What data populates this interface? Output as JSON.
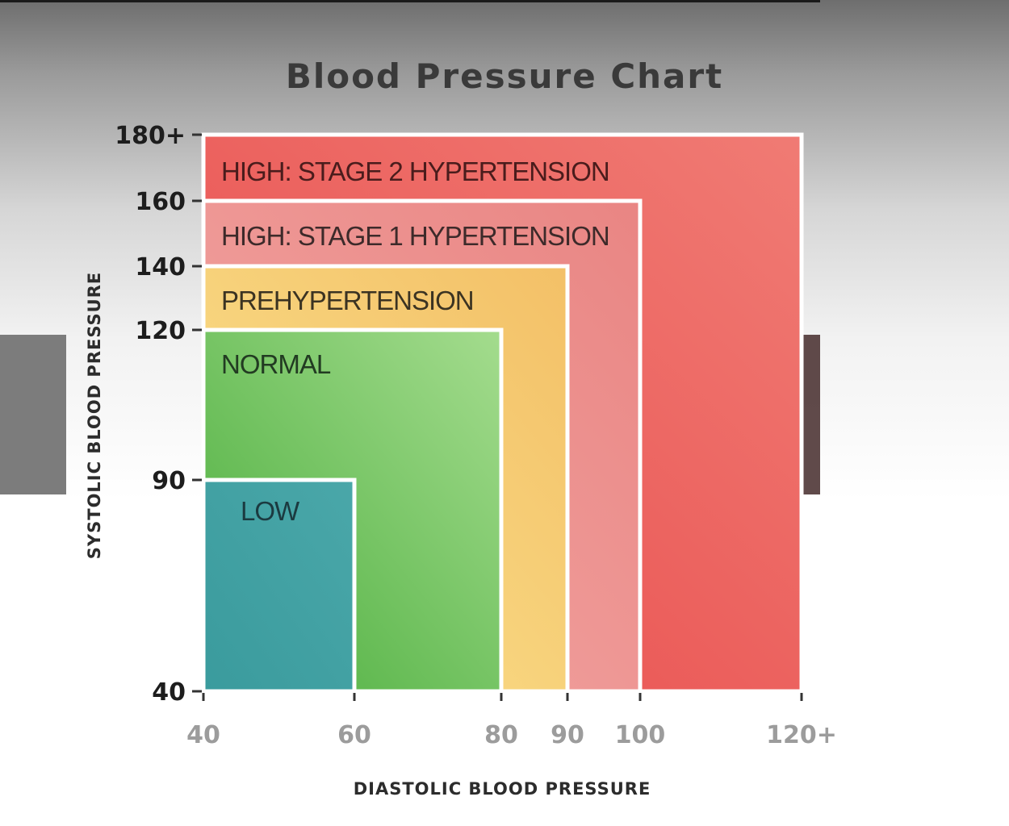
{
  "chart_data": {
    "type": "area",
    "title": "Blood Pressure Chart",
    "xlabel": "DIASTOLIC BLOOD PRESSURE",
    "ylabel": "SYSTOLIC BLOOD PRESSURE",
    "x_ticks": [
      {
        "value": 40,
        "label": "40"
      },
      {
        "value": 60,
        "label": "60"
      },
      {
        "value": 80,
        "label": "80"
      },
      {
        "value": 90,
        "label": "90"
      },
      {
        "value": 100,
        "label": "100"
      },
      {
        "value": 120,
        "label": "120+"
      }
    ],
    "y_ticks": [
      {
        "value": 40,
        "label": "40"
      },
      {
        "value": 90,
        "label": "90"
      },
      {
        "value": 120,
        "label": "120"
      },
      {
        "value": 140,
        "label": "140"
      },
      {
        "value": 160,
        "label": "160"
      },
      {
        "value": 180,
        "label": "180+"
      }
    ],
    "zones": [
      {
        "name": "HIGH: STAGE 2 HYPERTENSION",
        "diastolic_max": 120,
        "systolic_max": 180,
        "color_from": "#e84a4a",
        "color_to": "#f07b74",
        "text_color": "#4a1c1c"
      },
      {
        "name": "HIGH: STAGE 1 HYPERTENSION",
        "diastolic_max": 100,
        "systolic_max": 160,
        "color_from": "#f3a9a6",
        "color_to": "#e98583",
        "text_color": "#3d2a2a"
      },
      {
        "name": "PREHYPERTENSION",
        "diastolic_max": 90,
        "systolic_max": 140,
        "color_from": "#fbe38e",
        "color_to": "#f3c067",
        "text_color": "#3b3322"
      },
      {
        "name": "NORMAL",
        "diastolic_max": 80,
        "systolic_max": 120,
        "color_from": "#49ad3b",
        "color_to": "#a4dc8e",
        "text_color": "#223b22"
      },
      {
        "name": "LOW",
        "diastolic_max": 60,
        "systolic_max": 90,
        "color_from": "#3a9b9d",
        "color_to": "#4aa7a9",
        "text_color": "#1b3a40"
      }
    ],
    "xlim": [
      40,
      120
    ],
    "ylim": [
      40,
      180
    ]
  }
}
